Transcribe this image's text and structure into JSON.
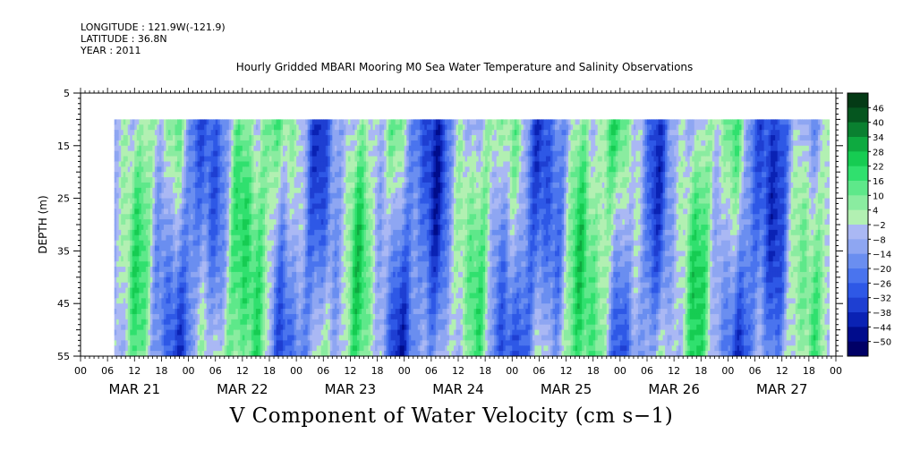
{
  "header": {
    "longitude": "LONGITUDE : 121.9W(-121.9)",
    "latitude": "LATITUDE : 36.8N",
    "year": "YEAR : 2011"
  },
  "chart_data": {
    "type": "heatmap",
    "title": "Hourly Gridded MBARI Mooring M0 Sea Water Temperature and Salinity Observations",
    "variable_label": "V Component of Water Velocity (cm s−1)",
    "ylabel": "DEPTH (m)",
    "y_axis": {
      "range": [
        5,
        55
      ],
      "inverted": true,
      "ticks": [
        5,
        15,
        25,
        35,
        45,
        55
      ]
    },
    "x_axis": {
      "range_hours": [
        0,
        168
      ],
      "hour_tick_labels": [
        "00",
        "06",
        "12",
        "18",
        "00",
        "06",
        "12",
        "18",
        "00",
        "06",
        "12",
        "18",
        "00",
        "06",
        "12",
        "18",
        "00",
        "06",
        "12",
        "18",
        "00",
        "06",
        "12",
        "18",
        "00",
        "06",
        "12",
        "18",
        "00"
      ],
      "day_labels": [
        "MAR 21",
        "MAR 22",
        "MAR 23",
        "MAR 24",
        "MAR 25",
        "MAR 26",
        "MAR 27"
      ]
    },
    "data_extent": {
      "depth_top": 10,
      "depth_bottom": 55,
      "start_hour": 7.5,
      "end_hour": 166.5
    },
    "colorbar": {
      "levels": [
        -50,
        -44,
        -38,
        -32,
        -26,
        -20,
        -14,
        -8,
        -2,
        4,
        10,
        16,
        22,
        28,
        34,
        40,
        46
      ],
      "tick_labels": [
        "46",
        "40",
        "34",
        "28",
        "22",
        "16",
        "10",
        "4",
        "−2",
        "−8",
        "−14",
        "−20",
        "−26",
        "−32",
        "−38",
        "−44",
        "−50"
      ],
      "colors": [
        "#000066",
        "#000c8c",
        "#0a22b4",
        "#1e3fd2",
        "#2e58e6",
        "#4a74ee",
        "#6a8ef0",
        "#8ea6f2",
        "#aab8f4",
        "#b2f0b2",
        "#8aeca0",
        "#5ee88a",
        "#30e06e",
        "#16cc52",
        "#0eaa40",
        "#0a8030",
        "#05561f",
        "#043a15"
      ]
    }
  }
}
